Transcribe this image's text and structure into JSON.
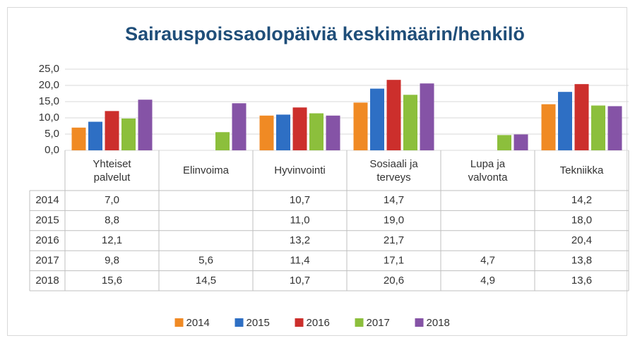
{
  "chart_data": {
    "type": "bar",
    "title": "Sairauspoissaolopäiviä  keskimäärin/henkilö",
    "categories": [
      "Yhteiset palvelut",
      "Elinvoima",
      "Hyvinvointi",
      "Sosiaali ja terveys",
      "Lupa ja valvonta",
      "Tekniikka"
    ],
    "series": [
      {
        "name": "2014",
        "color": "#f08a24",
        "values": [
          7.0,
          null,
          10.7,
          14.7,
          null,
          14.2
        ],
        "value_labels": [
          "7,0",
          null,
          "10,7",
          "14,7",
          null,
          "14,2"
        ]
      },
      {
        "name": "2015",
        "color": "#2e6fc4",
        "values": [
          8.8,
          null,
          11.0,
          19.0,
          null,
          18.0
        ],
        "value_labels": [
          "8,8",
          null,
          "11,0",
          "19,0",
          null,
          "18,0"
        ]
      },
      {
        "name": "2016",
        "color": "#cc2f2c",
        "values": [
          12.1,
          null,
          13.2,
          21.7,
          null,
          20.4
        ],
        "value_labels": [
          "12,1",
          null,
          "13,2",
          "21,7",
          null,
          "20,4"
        ]
      },
      {
        "name": "2017",
        "color": "#8cbf3c",
        "values": [
          9.8,
          5.6,
          11.4,
          17.1,
          4.7,
          13.8
        ],
        "value_labels": [
          "9,8",
          "5,6",
          "11,4",
          "17,1",
          "4,7",
          "13,8"
        ]
      },
      {
        "name": "2018",
        "color": "#8553a6",
        "values": [
          15.6,
          14.5,
          10.7,
          20.6,
          4.9,
          13.6
        ],
        "value_labels": [
          "15,6",
          "14,5",
          "10,7",
          "20,6",
          "4,9",
          "13,6"
        ]
      }
    ],
    "ylim": [
      0,
      25
    ],
    "yticks": [
      {
        "value": 0,
        "label": "0,0"
      },
      {
        "value": 5,
        "label": "5,0"
      },
      {
        "value": 10,
        "label": "10,0"
      },
      {
        "value": 15,
        "label": "15,0"
      },
      {
        "value": 20,
        "label": "20,0"
      },
      {
        "value": 25,
        "label": "25,0"
      }
    ],
    "grid": true,
    "legend": "bottom"
  }
}
